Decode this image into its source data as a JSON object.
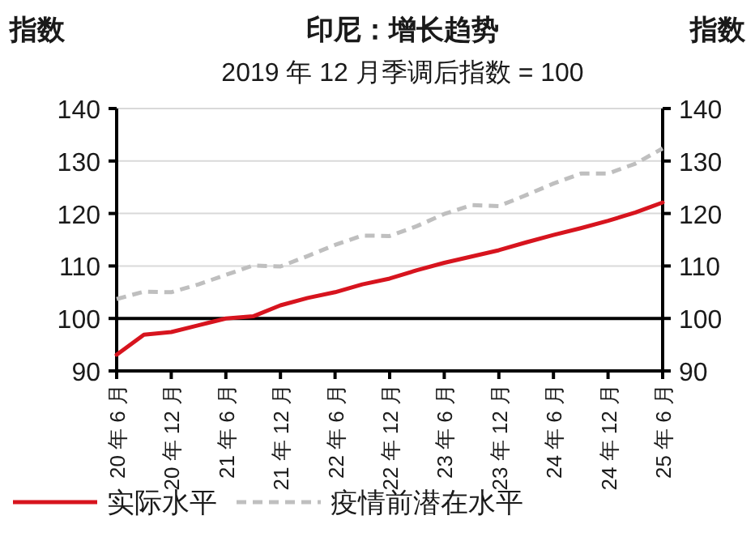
{
  "chart_data": {
    "type": "line",
    "title": "印尼：增长趋势",
    "subtitle": "2019 年 12 月季调后指数 = 100",
    "ylabel": "指数",
    "y2label": "指数",
    "categories": [
      "20 年 6 月",
      null,
      "20 年 12 月",
      null,
      "21 年 6 月",
      null,
      "21 年 12 月",
      null,
      "22 年 6 月",
      null,
      "22 年 12 月",
      null,
      "23 年 6 月",
      null,
      "23 年 12 月",
      null,
      "24 年 6 月",
      null,
      "24 年 12 月",
      null,
      "25 年 6 月"
    ],
    "series": [
      {
        "name": "实际水平",
        "color": "#d7141e",
        "line_style": "solid",
        "values": [
          93.1,
          96.9,
          97.4,
          98.7,
          100.0,
          100.4,
          102.5,
          103.9,
          105.0,
          106.5,
          107.6,
          109.2,
          110.6,
          111.8,
          113.0,
          114.5,
          115.9,
          117.2,
          118.6,
          120.2,
          122.1
        ]
      },
      {
        "name": "疫情前潜在水平",
        "color": "#bfbfbf",
        "line_style": "dashed",
        "values": [
          103.7,
          105.1,
          105.0,
          106.5,
          108.3,
          110.1,
          109.9,
          111.9,
          114.0,
          115.8,
          115.7,
          117.6,
          119.9,
          121.6,
          121.4,
          123.5,
          125.7,
          127.6,
          127.6,
          129.5,
          132.4
        ]
      }
    ],
    "ylim": [
      90,
      140
    ],
    "yticks": [
      90,
      100,
      110,
      120,
      130,
      140
    ],
    "y2lim": [
      90,
      140
    ],
    "y2ticks": [
      90,
      100,
      110,
      120,
      130,
      140
    ],
    "ref_lines": [
      {
        "axis": "y",
        "value": 100,
        "color": "#000000"
      }
    ],
    "grid": "y",
    "legend": "bottom",
    "marker": "none"
  }
}
